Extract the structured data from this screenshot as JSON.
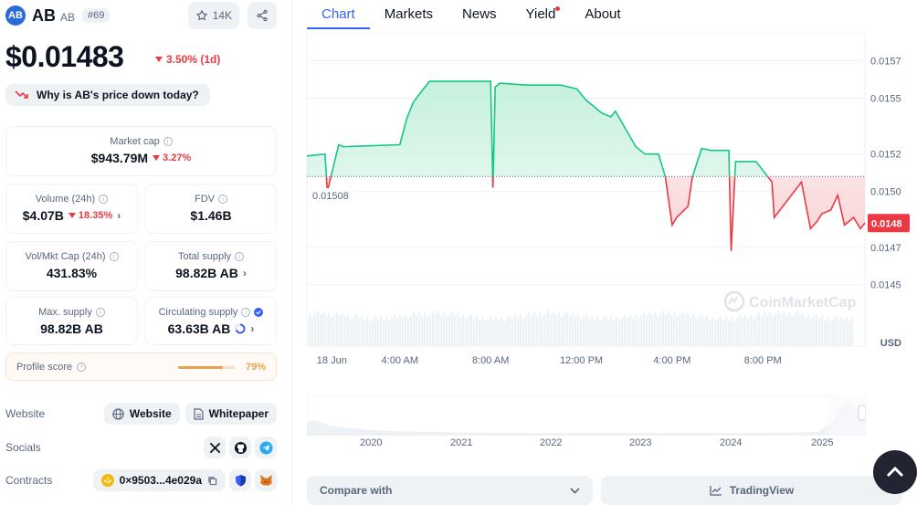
{
  "coin": {
    "name": "AB",
    "symbol": "AB",
    "rank": "#69",
    "logo_text": "AB",
    "watchlist_count": "14K"
  },
  "price": {
    "value": "$0.01483",
    "change": "3.50% (1d)",
    "why_label": "Why is AB's price down today?"
  },
  "stats": {
    "market_cap": {
      "label": "Market cap",
      "value": "$943.79M",
      "change": "3.27%"
    },
    "volume": {
      "label": "Volume (24h)",
      "value": "$4.07B",
      "change": "18.35%"
    },
    "fdv": {
      "label": "FDV",
      "value": "$1.46B"
    },
    "vol_mkt_cap": {
      "label": "Vol/Mkt Cap (24h)",
      "value": "431.83%"
    },
    "total_supply": {
      "label": "Total supply",
      "value": "98.82B AB"
    },
    "max_supply": {
      "label": "Max. supply",
      "value": "98.82B AB"
    },
    "circulating_supply": {
      "label": "Circulating supply",
      "value": "63.63B AB"
    }
  },
  "profile": {
    "label": "Profile score",
    "pct_text": "79%",
    "pct": 0.79
  },
  "links": {
    "website_label": "Website",
    "website_btn": "Website",
    "whitepaper_btn": "Whitepaper",
    "socials_label": "Socials",
    "contracts_label": "Contracts",
    "contract_addr": "0×9503...4e029a"
  },
  "tabs": [
    "Chart",
    "Markets",
    "News",
    "Yield",
    "About"
  ],
  "chart": {
    "open_label": "0.01508",
    "current_label": "0.0148",
    "currency": "USD",
    "watermark": "CoinMarketCap",
    "colors": {
      "up": "#16c784",
      "down": "#ea3943",
      "up_fill": "#c6f0dd",
      "down_fill": "#f9d3d5"
    }
  },
  "chart_data": {
    "type": "area",
    "baseline": 0.01508,
    "ylim": [
      0.01443,
      0.01585
    ],
    "y_ticks": [
      "0.0157",
      "0.0155",
      "0.0152",
      "0.0150",
      "0.0147",
      "0.0145"
    ],
    "y_tick_values": [
      0.0157,
      0.0155,
      0.0152,
      0.015,
      0.0147,
      0.0145
    ],
    "x_ticks": [
      "18 Jun",
      "4:00 AM",
      "8:00 AM",
      "12:00 PM",
      "4:00 PM",
      "8:00 PM"
    ],
    "x_tick_hours": [
      1,
      4,
      8,
      12,
      16,
      20
    ],
    "x_range_hours": [
      -0.1,
      24.5
    ],
    "series": [
      {
        "x": [
          -0.1,
          0.7,
          0.8,
          1.3,
          1.5,
          4.0,
          4.3,
          4.6,
          5.3,
          8.0,
          8.1,
          8.2,
          8.4,
          9.6,
          11.1,
          11.8,
          12.2,
          12.9,
          13.3,
          13.5,
          14.4,
          14.8,
          15.4,
          15.7,
          16.0,
          16.2,
          16.7,
          16.9,
          17.3,
          17.7,
          18.5,
          18.6,
          18.8,
          19.7,
          20.4,
          20.5,
          21.7,
          22.1,
          22.4,
          22.6,
          23.0,
          23.3,
          23.6,
          24.0,
          24.3,
          24.5
        ],
        "y": [
          0.01519,
          0.0152,
          0.015,
          0.01525,
          0.01524,
          0.01525,
          0.01539,
          0.01548,
          0.01559,
          0.01559,
          0.01502,
          0.01556,
          0.01558,
          0.01557,
          0.01557,
          0.01555,
          0.01549,
          0.01542,
          0.0154,
          0.01543,
          0.01524,
          0.0152,
          0.0152,
          0.01508,
          0.01482,
          0.01486,
          0.01492,
          0.01508,
          0.01523,
          0.01522,
          0.01522,
          0.01468,
          0.01516,
          0.01516,
          0.01505,
          0.01486,
          0.01505,
          0.0148,
          0.01484,
          0.01488,
          0.0149,
          0.01498,
          0.01482,
          0.01486,
          0.0148,
          0.01483
        ]
      }
    ],
    "navigator_x_labels": [
      "2020",
      "2021",
      "2022",
      "2023",
      "2024",
      "2025"
    ]
  }
}
